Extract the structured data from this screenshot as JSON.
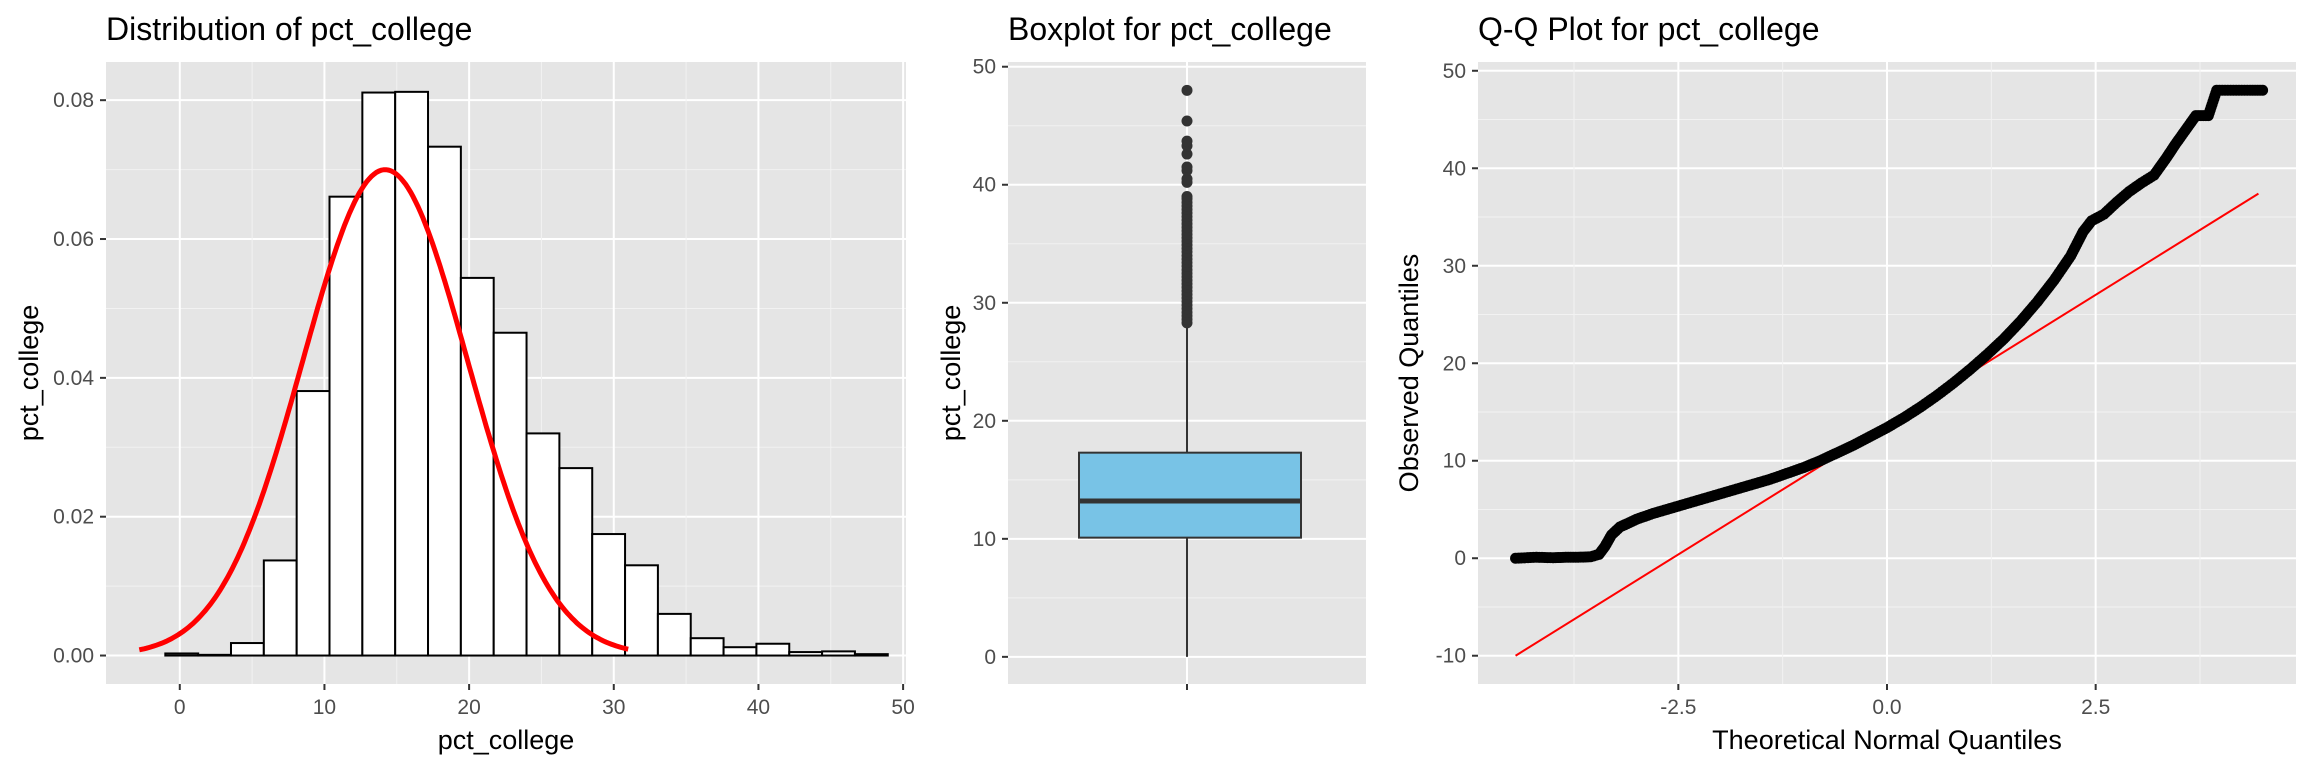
{
  "chart_data": [
    {
      "type": "bar",
      "title": "Distribution of pct_college",
      "xlabel": "pct_college",
      "ylabel": "pct_college",
      "xlim": [
        -5.1,
        50.2
      ],
      "ylim": [
        -0.0041,
        0.0855
      ],
      "x_ticks": [
        "0",
        "10",
        "20",
        "30",
        "40",
        "50"
      ],
      "y_ticks": [
        "0.00",
        "0.02",
        "0.04",
        "0.06",
        "0.08"
      ],
      "grid": true,
      "bins": [
        {
          "x0": -3.27,
          "x1": -1.0,
          "density": 0.0
        },
        {
          "x0": -1.0,
          "x1": 1.27,
          "density": 0.0003
        },
        {
          "x0": 1.27,
          "x1": 3.54,
          "density": 0.0001
        },
        {
          "x0": 3.54,
          "x1": 5.81,
          "density": 0.0018
        },
        {
          "x0": 5.81,
          "x1": 8.08,
          "density": 0.0137
        },
        {
          "x0": 8.08,
          "x1": 10.35,
          "density": 0.0381
        },
        {
          "x0": 10.35,
          "x1": 12.62,
          "density": 0.0661
        },
        {
          "x0": 12.62,
          "x1": 14.89,
          "density": 0.0811
        },
        {
          "x0": 14.89,
          "x1": 17.16,
          "density": 0.0812
        },
        {
          "x0": 17.16,
          "x1": 19.43,
          "density": 0.0733
        },
        {
          "x0": 19.43,
          "x1": 21.7,
          "density": 0.0544
        },
        {
          "x0": 21.7,
          "x1": 23.97,
          "density": 0.0465
        },
        {
          "x0": 23.97,
          "x1": 26.24,
          "density": 0.032
        },
        {
          "x0": 26.24,
          "x1": 28.51,
          "density": 0.027
        },
        {
          "x0": 28.51,
          "x1": 30.78,
          "density": 0.0175
        },
        {
          "x0": 30.78,
          "x1": 33.05,
          "density": 0.013
        },
        {
          "x0": 33.05,
          "x1": 35.32,
          "density": 0.006
        },
        {
          "x0": 35.32,
          "x1": 37.59,
          "density": 0.0025
        },
        {
          "x0": 37.59,
          "x1": 39.86,
          "density": 0.0012
        },
        {
          "x0": 39.86,
          "x1": 42.13,
          "density": 0.0017
        },
        {
          "x0": 42.13,
          "x1": 44.4,
          "density": 0.0005
        },
        {
          "x0": 44.4,
          "x1": 46.67,
          "density": 0.0006
        },
        {
          "x0": 46.67,
          "x1": 48.94,
          "density": 0.0002
        }
      ],
      "overlay": {
        "type": "normal_density",
        "color": "#ff0000",
        "mean": 14.2,
        "sd": 5.7,
        "x_range": [
          -2.8,
          31
        ]
      }
    },
    {
      "type": "boxplot",
      "title": "Boxplot for pct_college",
      "ylabel": "pct_college",
      "xlabel": "",
      "ylim": [
        -2.3,
        50.4
      ],
      "y_ticks": [
        "0",
        "10",
        "20",
        "30",
        "40",
        "50"
      ],
      "fill": "#78c3e6",
      "stats": {
        "min": 0.0,
        "q1": 10.1,
        "median": 13.2,
        "q3": 17.3,
        "whisker_high": 28.1
      },
      "outliers": [
        28.3,
        28.6,
        28.9,
        29.2,
        29.5,
        29.8,
        30.1,
        30.4,
        30.7,
        31.0,
        31.3,
        31.6,
        31.9,
        32.2,
        32.5,
        32.8,
        33.1,
        33.4,
        33.7,
        34.0,
        34.3,
        34.6,
        34.9,
        35.2,
        35.5,
        35.8,
        36.1,
        36.4,
        36.7,
        37.0,
        37.3,
        37.6,
        37.9,
        38.2,
        38.5,
        38.8,
        39.0,
        40.2,
        40.5,
        41.2,
        41.5,
        42.6,
        43.3,
        43.7,
        45.4,
        48.0
      ]
    },
    {
      "type": "scatter",
      "title": "Q-Q Plot for pct_college",
      "xlabel": "Theoretical Normal Quantiles",
      "ylabel": "Observed Quantiles",
      "xlim": [
        -4.9,
        4.9
      ],
      "ylim": [
        -12.9,
        50.9
      ],
      "x_ticks": [
        -2.5,
        0.0,
        2.5
      ],
      "x_tick_labels": [
        "-2.5",
        "0.0",
        "2.5"
      ],
      "y_ticks": [
        "-10",
        "0",
        "10",
        "20",
        "30",
        "40",
        "50"
      ],
      "reference_line": {
        "color": "#ff0000",
        "x": [
          -4.45,
          4.45
        ],
        "y": [
          -10.0,
          37.4
        ]
      },
      "points": [
        [
          -4.45,
          0.0
        ],
        [
          -4.2,
          0.1
        ],
        [
          -4.0,
          0.05
        ],
        [
          -3.85,
          0.1
        ],
        [
          -3.7,
          0.1
        ],
        [
          -3.55,
          0.15
        ],
        [
          -3.45,
          0.4
        ],
        [
          -3.38,
          1.2
        ],
        [
          -3.3,
          2.4
        ],
        [
          -3.2,
          3.2
        ],
        [
          -3.0,
          4.0
        ],
        [
          -2.8,
          4.6
        ],
        [
          -2.6,
          5.1
        ],
        [
          -2.4,
          5.6
        ],
        [
          -2.2,
          6.1
        ],
        [
          -2.0,
          6.6
        ],
        [
          -1.8,
          7.1
        ],
        [
          -1.6,
          7.6
        ],
        [
          -1.4,
          8.1
        ],
        [
          -1.2,
          8.7
        ],
        [
          -1.0,
          9.3
        ],
        [
          -0.8,
          10.0
        ],
        [
          -0.6,
          10.8
        ],
        [
          -0.4,
          11.6
        ],
        [
          -0.2,
          12.5
        ],
        [
          0.0,
          13.4
        ],
        [
          0.2,
          14.4
        ],
        [
          0.4,
          15.5
        ],
        [
          0.6,
          16.7
        ],
        [
          0.8,
          18.0
        ],
        [
          1.0,
          19.4
        ],
        [
          1.2,
          20.9
        ],
        [
          1.4,
          22.5
        ],
        [
          1.6,
          24.3
        ],
        [
          1.8,
          26.3
        ],
        [
          2.0,
          28.5
        ],
        [
          2.2,
          31.0
        ],
        [
          2.35,
          33.5
        ],
        [
          2.45,
          34.6
        ],
        [
          2.6,
          35.3
        ],
        [
          2.75,
          36.5
        ],
        [
          2.9,
          37.6
        ],
        [
          3.05,
          38.5
        ],
        [
          3.2,
          39.3
        ],
        [
          3.35,
          41.1
        ],
        [
          3.45,
          42.4
        ],
        [
          3.55,
          43.6
        ],
        [
          3.7,
          45.4
        ],
        [
          3.85,
          45.4
        ],
        [
          3.95,
          48.0
        ],
        [
          4.15,
          48.0
        ],
        [
          4.35,
          48.0
        ],
        [
          4.5,
          48.0
        ]
      ]
    }
  ]
}
